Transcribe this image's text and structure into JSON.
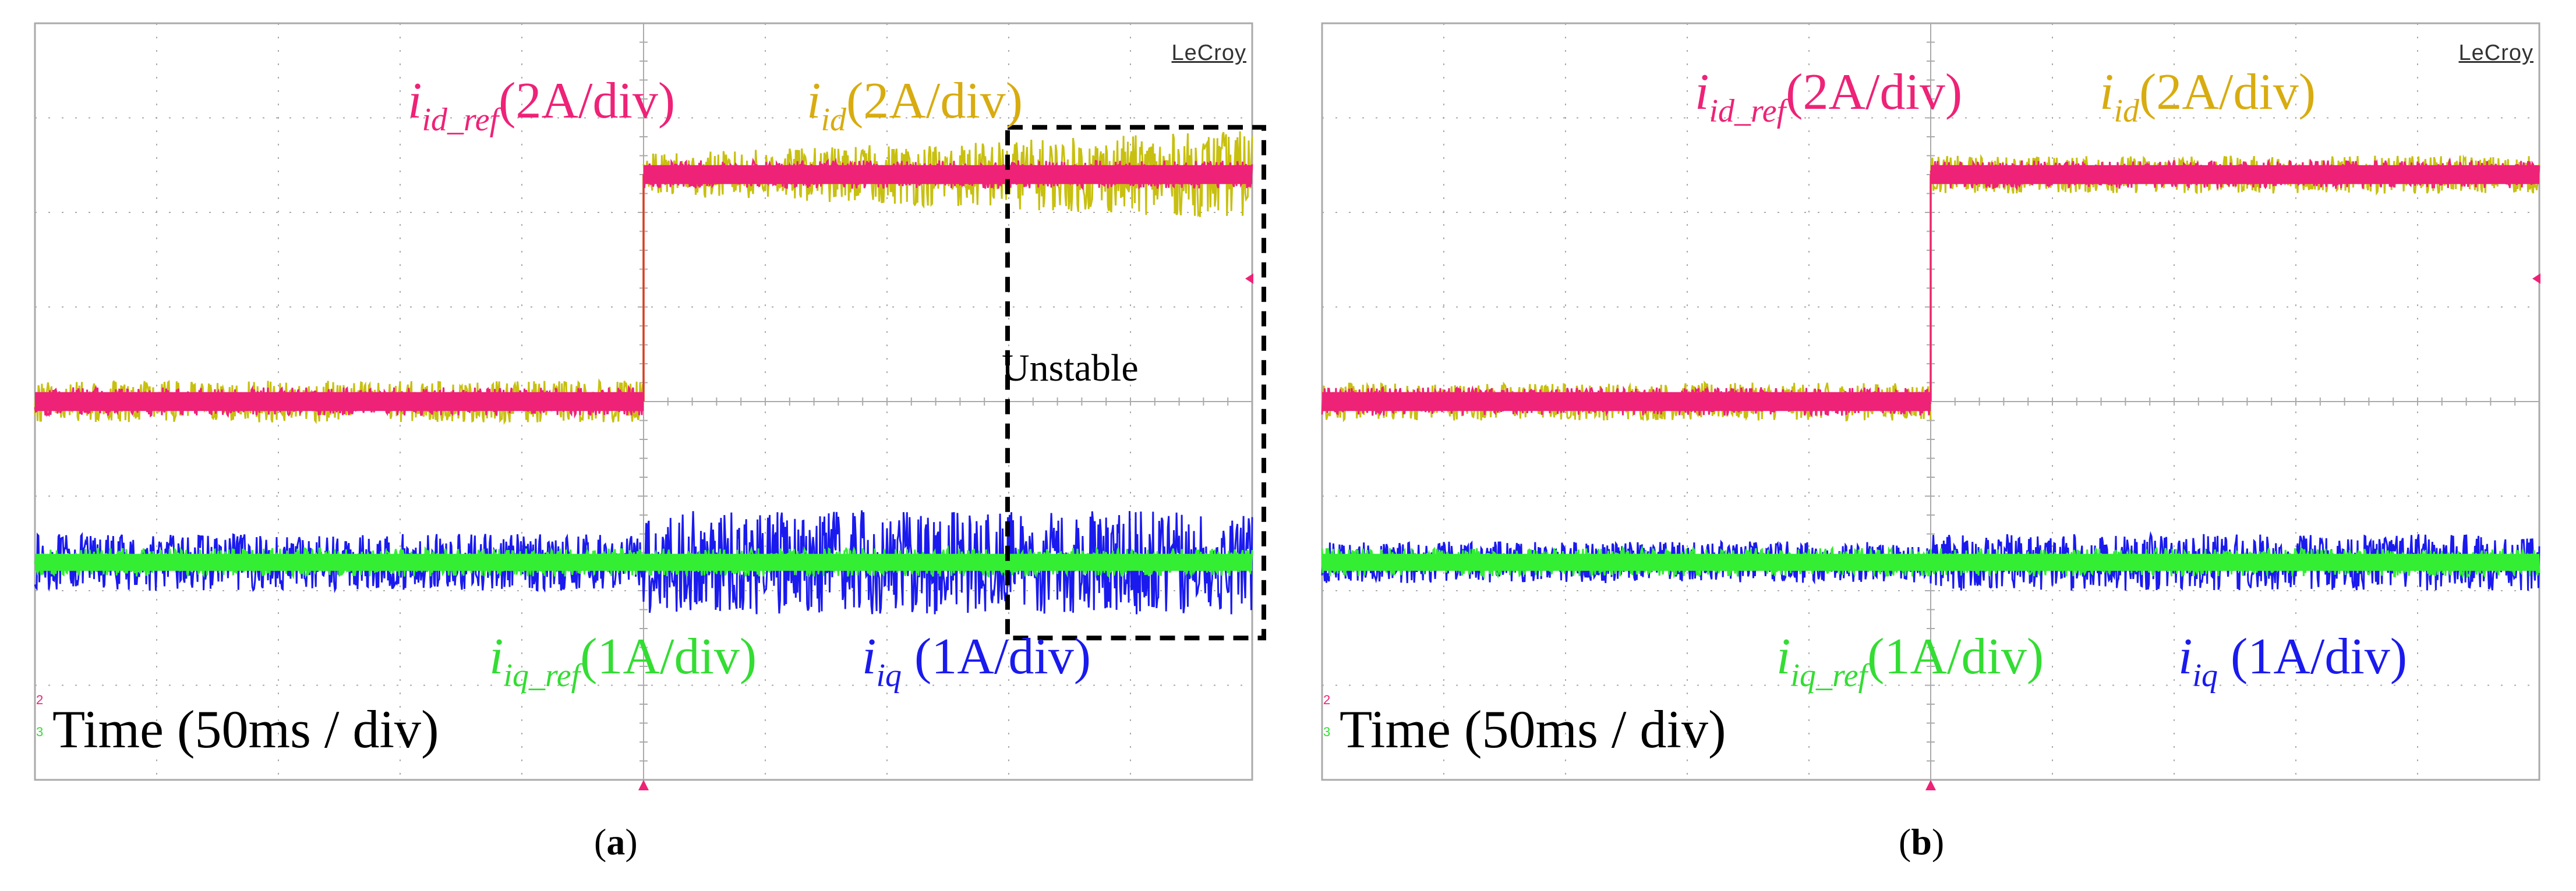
{
  "brand": "LeCroy",
  "colors": {
    "id_ref": "#ee2277",
    "id": "#c8c010",
    "id_label": "#d8ac10",
    "iq_ref": "#33ee33",
    "iq": "#1a1aee",
    "grid": "#aaaaaa",
    "marker": "#ee2277"
  },
  "chart_data": [
    {
      "type": "line",
      "panel": "a",
      "caption": {
        "open": "(",
        "letter": "a",
        "close": ")"
      },
      "title": "",
      "xlabel": "Time (50ms / div)",
      "x_divisions": 10,
      "y_divisions": 8,
      "step_time_div": 5,
      "series": [
        {
          "name": "i_id_ref",
          "label_sym": "i",
          "label_sub": "id_ref",
          "label_scale": "(2A/div)",
          "scale": "2A/div",
          "segments": [
            {
              "t": [
                0,
                5
              ],
              "level_div": 0.0
            },
            {
              "t": [
                5,
                10
              ],
              "level_div": 2.4
            }
          ],
          "noise_div": 0.15
        },
        {
          "name": "i_id",
          "label_sym": "i",
          "label_sub": "id",
          "label_scale": "(2A/div)",
          "scale": "2A/div",
          "segments": [
            {
              "t": [
                0,
                5
              ],
              "level_div": 0.0
            },
            {
              "t": [
                5,
                10
              ],
              "level_div": 2.4
            }
          ],
          "noise_div": 0.22,
          "noise_growth_div": 0.25
        },
        {
          "name": "i_iq_ref",
          "label_sym": "i",
          "label_sub": "iq_ref",
          "label_scale": "(1A/div)",
          "scale": "1A/div",
          "segments": [
            {
              "t": [
                0,
                10
              ],
              "level_div": -1.7
            }
          ],
          "noise_div": 0.15
        },
        {
          "name": "i_iq",
          "label_sym": "i",
          "label_sub": "iq",
          "label_scale": " (1A/div)",
          "scale": "1A/div",
          "segments": [
            {
              "t": [
                0,
                10
              ],
              "level_div": -1.7
            }
          ],
          "noise_div": 0.3,
          "noise_after_step_div": 0.55
        }
      ],
      "annotation": {
        "text": "Unstable",
        "t": [
          8,
          10
        ]
      }
    },
    {
      "type": "line",
      "panel": "b",
      "caption": {
        "open": "(",
        "letter": "b",
        "close": ")"
      },
      "title": "",
      "xlabel": "Time (50ms / div)",
      "x_divisions": 10,
      "y_divisions": 8,
      "step_time_div": 5,
      "series": [
        {
          "name": "i_id_ref",
          "label_sym": "i",
          "label_sub": "id_ref",
          "label_scale": "(2A/div)",
          "scale": "2A/div",
          "segments": [
            {
              "t": [
                0,
                5
              ],
              "level_div": 0.0
            },
            {
              "t": [
                5,
                10
              ],
              "level_div": 2.4
            }
          ],
          "noise_div": 0.15
        },
        {
          "name": "i_id",
          "label_sym": "i",
          "label_sub": "id",
          "label_scale": "(2A/div)",
          "scale": "2A/div",
          "segments": [
            {
              "t": [
                0,
                5
              ],
              "level_div": 0.0
            },
            {
              "t": [
                5,
                10
              ],
              "level_div": 2.4
            }
          ],
          "noise_div": 0.2
        },
        {
          "name": "i_iq_ref",
          "label_sym": "i",
          "label_sub": "iq_ref",
          "label_scale": "(1A/div)",
          "scale": "1A/div",
          "segments": [
            {
              "t": [
                0,
                10
              ],
              "level_div": -1.7
            }
          ],
          "noise_div": 0.15
        },
        {
          "name": "i_iq",
          "label_sym": "i",
          "label_sub": "iq",
          "label_scale": " (1A/div)",
          "scale": "1A/div",
          "segments": [
            {
              "t": [
                0,
                10
              ],
              "level_div": -1.7
            }
          ],
          "noise_div": 0.22,
          "noise_after_step_div": 0.3
        }
      ]
    }
  ],
  "channel_markers": [
    "2",
    "3"
  ]
}
